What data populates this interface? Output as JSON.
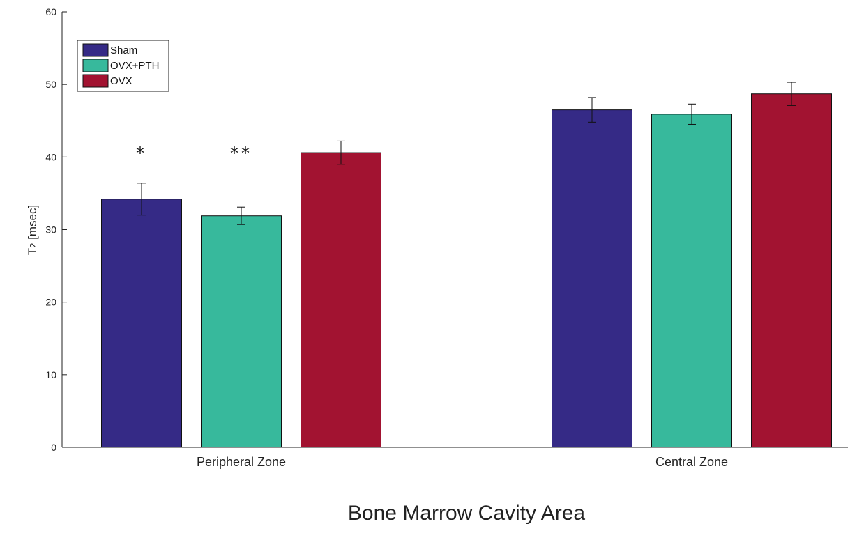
{
  "chart_data": {
    "type": "bar",
    "categories": [
      "Peripheral Zone",
      "Central Zone"
    ],
    "series": [
      {
        "name": "Sham",
        "color": "#352a86",
        "values": [
          34.2,
          46.5
        ],
        "errors": [
          2.2,
          1.7
        ]
      },
      {
        "name": "OVX+PTH",
        "color": "#37b99c",
        "values": [
          31.9,
          45.9
        ],
        "errors": [
          1.2,
          1.4
        ]
      },
      {
        "name": "OVX",
        "color": "#a21331",
        "values": [
          40.6,
          48.7
        ],
        "errors": [
          1.6,
          1.6
        ]
      }
    ],
    "annotations": [
      {
        "text": "*",
        "category": 0,
        "series": 0
      },
      {
        "text": "**",
        "category": 0,
        "series": 1
      }
    ],
    "xlabel": "Bone Marrow Cavity Area",
    "ylabel_main": "T",
    "ylabel_sub": "2",
    "ylabel_unit": " [msec]",
    "ylim": [
      0,
      60
    ],
    "yticks": [
      0,
      10,
      20,
      30,
      40,
      50,
      60
    ],
    "legend_position": "top-left",
    "grid": false
  }
}
